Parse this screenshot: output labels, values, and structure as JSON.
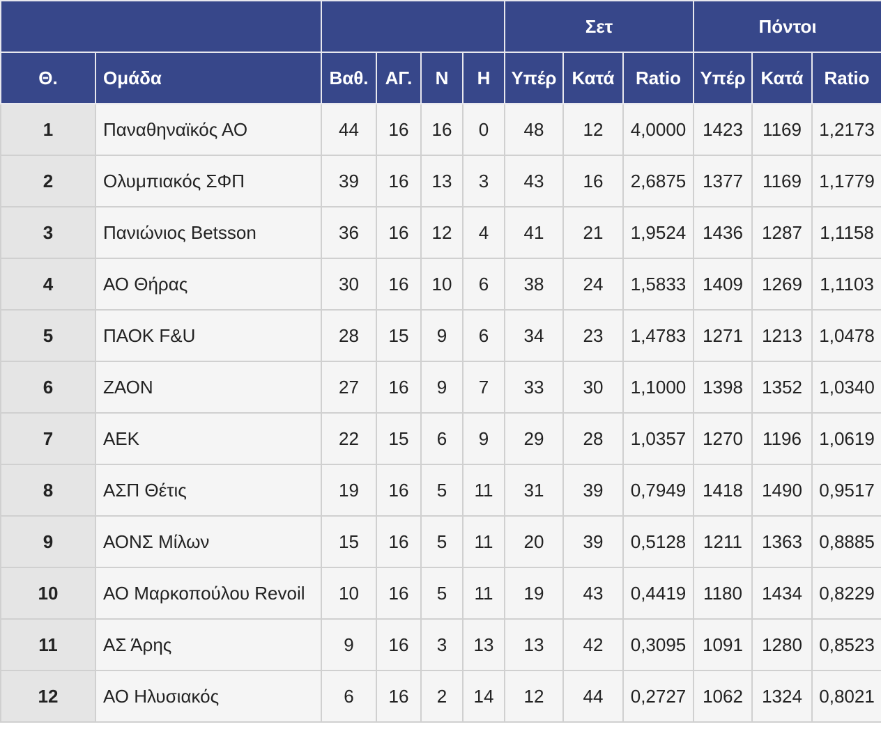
{
  "header": {
    "groups": [
      "Σετ",
      "Πόντοι"
    ],
    "columns": [
      "Θ.",
      "Ομάδα",
      "Βαθ.",
      "ΑΓ.",
      "Ν",
      "Η",
      "Υπέρ",
      "Κατά",
      "Ratio",
      "Υπέρ",
      "Κατά",
      "Ratio"
    ]
  },
  "table": {
    "rows": [
      [
        "1",
        "Παναθηναϊκός ΑΟ",
        "44",
        "16",
        "16",
        "0",
        "48",
        "12",
        "4,0000",
        "1423",
        "1169",
        "1,2173"
      ],
      [
        "2",
        "Ολυμπιακός ΣΦΠ",
        "39",
        "16",
        "13",
        "3",
        "43",
        "16",
        "2,6875",
        "1377",
        "1169",
        "1,1779"
      ],
      [
        "3",
        "Πανιώνιος Betsson",
        "36",
        "16",
        "12",
        "4",
        "41",
        "21",
        "1,9524",
        "1436",
        "1287",
        "1,1158"
      ],
      [
        "4",
        "ΑΟ Θήρας",
        "30",
        "16",
        "10",
        "6",
        "38",
        "24",
        "1,5833",
        "1409",
        "1269",
        "1,1103"
      ],
      [
        "5",
        "ΠΑΟΚ F&U",
        "28",
        "15",
        "9",
        "6",
        "34",
        "23",
        "1,4783",
        "1271",
        "1213",
        "1,0478"
      ],
      [
        "6",
        "ΖΑΟΝ",
        "27",
        "16",
        "9",
        "7",
        "33",
        "30",
        "1,1000",
        "1398",
        "1352",
        "1,0340"
      ],
      [
        "7",
        "ΑΕΚ",
        "22",
        "15",
        "6",
        "9",
        "29",
        "28",
        "1,0357",
        "1270",
        "1196",
        "1,0619"
      ],
      [
        "8",
        "ΑΣΠ Θέτις",
        "19",
        "16",
        "5",
        "11",
        "31",
        "39",
        "0,7949",
        "1418",
        "1490",
        "0,9517"
      ],
      [
        "9",
        "ΑΟΝΣ Μίλων",
        "15",
        "16",
        "5",
        "11",
        "20",
        "39",
        "0,5128",
        "1211",
        "1363",
        "0,8885"
      ],
      [
        "10",
        "ΑΟ Μαρκοπούλου Revoil",
        "10",
        "16",
        "5",
        "11",
        "19",
        "43",
        "0,4419",
        "1180",
        "1434",
        "0,8229"
      ],
      [
        "11",
        "ΑΣ Άρης",
        "9",
        "16",
        "3",
        "13",
        "13",
        "42",
        "0,3095",
        "1091",
        "1280",
        "0,8523"
      ],
      [
        "12",
        "ΑΟ Ηλυσιακός",
        "6",
        "16",
        "2",
        "14",
        "12",
        "44",
        "0,2727",
        "1062",
        "1324",
        "0,8021"
      ]
    ]
  }
}
